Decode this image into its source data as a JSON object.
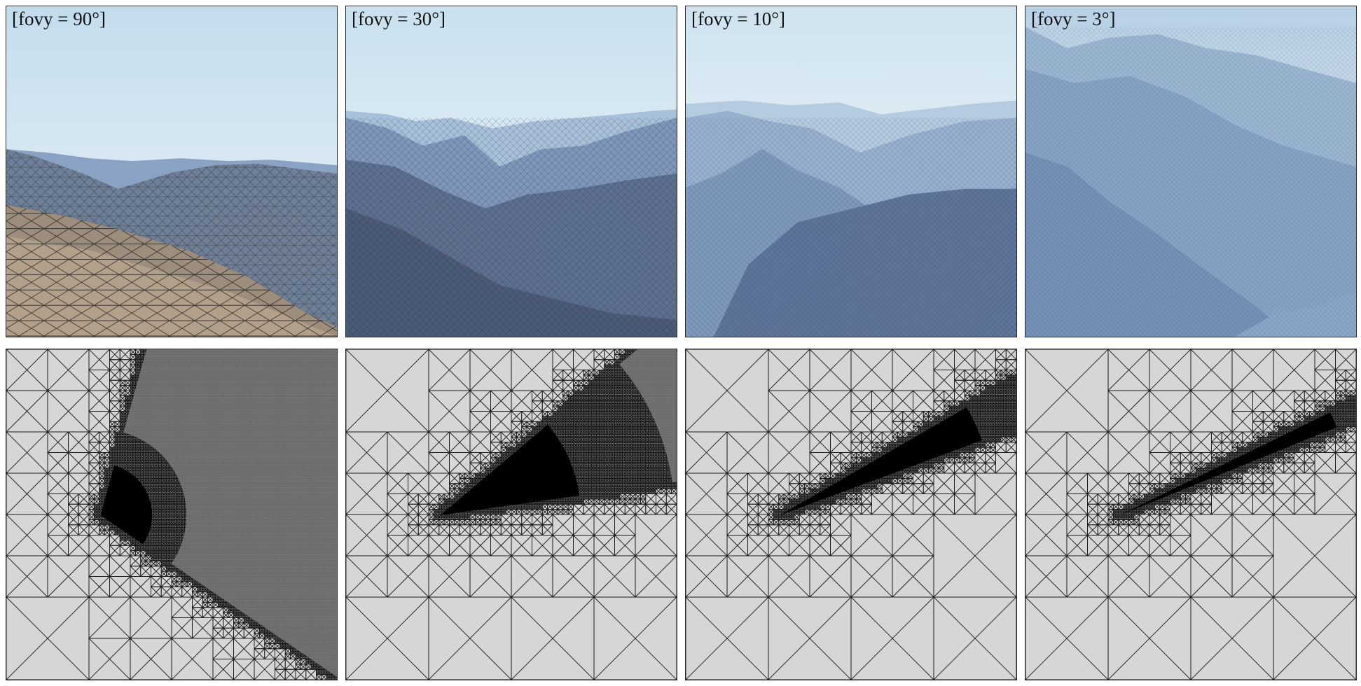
{
  "figure": {
    "renders": [
      {
        "label": "[fovy = 90°]"
      },
      {
        "label": "[fovy = 30°]"
      },
      {
        "label": "[fovy = 10°]"
      },
      {
        "label": "[fovy = 3°]"
      }
    ],
    "colors": {
      "sky_top": "#c9e0ee",
      "sky_bottom": "#eef5f9",
      "mountain_dark": "#4f6384",
      "mountain_mid": "#7390b5",
      "mountain_light": "#a9c2da",
      "ground": "#a8957c",
      "mesh_background": "#d6d6d6",
      "mesh_line": "#1a1a1a",
      "dense_fill": "#000000",
      "medium_fill": "#7a7a7a"
    },
    "icons": [
      "terrain-render-image",
      "quadtree-mesh-image"
    ]
  }
}
